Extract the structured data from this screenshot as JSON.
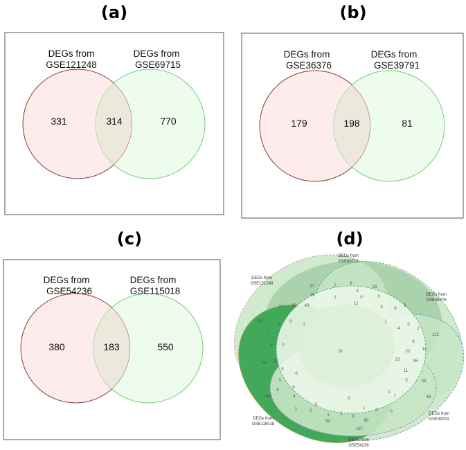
{
  "panels": {
    "a": {
      "title": "(a)",
      "set_left": {
        "line1": "DEGs from",
        "line2": "GSE121248"
      },
      "set_right": {
        "line1": "DEGs from",
        "line2": "GSE69715"
      },
      "left_only": "331",
      "both": "314",
      "right_only": "770"
    },
    "b": {
      "title": "(b)",
      "set_left": {
        "line1": "DEGs from",
        "line2": "GSE36376"
      },
      "set_right": {
        "line1": "DEGs from",
        "line2": "GSE39791"
      },
      "left_only": "179",
      "both": "198",
      "right_only": "81"
    },
    "c": {
      "title": "(c)",
      "set_left": {
        "line1": "DEGs from",
        "line2": "GSE54236"
      },
      "set_right": {
        "line1": "DEGs from",
        "line2": "GSE115018"
      },
      "left_only": "380",
      "both": "183",
      "right_only": "550"
    },
    "d": {
      "title": "(d)",
      "sets": [
        {
          "line1": "DEGs from",
          "line2": "GSE69715"
        },
        {
          "line1": "DEGs from",
          "line2": "GSE121248"
        },
        {
          "line1": "DEGs from",
          "line2": "GSE36376"
        },
        {
          "line1": "DEGs from",
          "line2": "GSE39791"
        },
        {
          "line1": "DEGs from",
          "line2": "GSE115018"
        },
        {
          "line1": "DEGs from",
          "line2": "GSE54236"
        }
      ],
      "region_counts": [
        "97",
        "2",
        "8",
        "33",
        "29",
        "3",
        "1",
        "0",
        "0",
        "37",
        "50",
        "43",
        "12",
        "3",
        "6",
        "6",
        "114",
        "2",
        "0",
        "1",
        "1",
        "4",
        "0",
        "2",
        "122",
        "7",
        "8",
        "11",
        "6",
        "0",
        "31",
        "22",
        "45",
        "26",
        "23",
        "36",
        "5",
        "6",
        "11",
        "3",
        "6",
        "5",
        "33",
        "8",
        "0",
        "7",
        "48",
        "386",
        "4",
        "0",
        "3",
        "1",
        "0",
        "0",
        "3",
        "0",
        "1",
        "1",
        "9",
        "60",
        "58",
        "187"
      ]
    }
  },
  "colors": {
    "left_circle_fill": "#fdeceb",
    "left_circle_stroke": "#8b4a4a",
    "right_circle_fill": "#eefcee",
    "right_circle_stroke": "#6fcf6f",
    "overlap_fill": "#ede8dc",
    "d_dark_green": "#0b5e2c",
    "d_mid_green": "#43a95a",
    "d_light_green": "#c7e6c4"
  }
}
